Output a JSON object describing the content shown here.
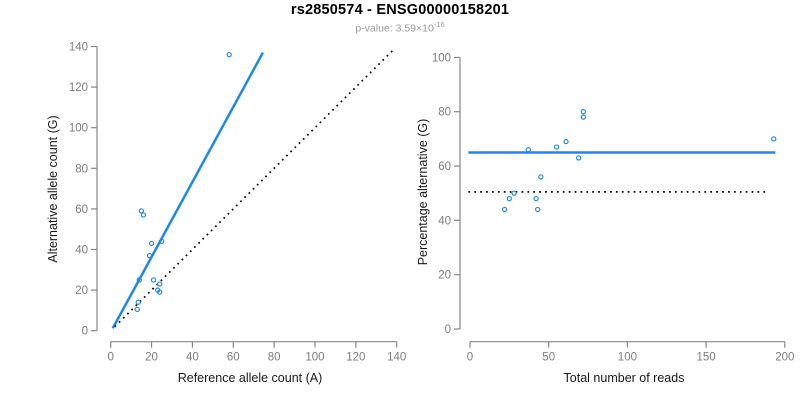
{
  "header": {
    "title": "rs2850574 - ENSG00000158201",
    "p_value_label": "p-value: 3.59×10",
    "p_value_exponent": "-16"
  },
  "colors": {
    "accent_blue": "#1E88E5",
    "reference_black": "#000000",
    "axis_gray": "#878787",
    "tick_label_gray": "#7d7d7d"
  },
  "chart_data": [
    {
      "type": "scatter",
      "panel": "allele-counts",
      "xlabel": "Reference allele count (A)",
      "ylabel": "Alternative allele count (G)",
      "xlim": [
        0,
        140
      ],
      "ylim": [
        0,
        140
      ],
      "xticks": [
        0,
        20,
        40,
        60,
        80,
        100,
        120,
        140
      ],
      "yticks": [
        0,
        20,
        40,
        60,
        80,
        100,
        120,
        140
      ],
      "grid": false,
      "points": [
        [
          58,
          136
        ],
        [
          15,
          59
        ],
        [
          16,
          57
        ],
        [
          25,
          44
        ],
        [
          20,
          43
        ],
        [
          19,
          37
        ],
        [
          14,
          25
        ],
        [
          21,
          25
        ],
        [
          24,
          23
        ],
        [
          23,
          20
        ],
        [
          24,
          19
        ],
        [
          13.5,
          14
        ],
        [
          13,
          10.5
        ]
      ],
      "lines": [
        {
          "name": "regression-line",
          "x1": 1,
          "y1": 1.2,
          "x2": 74.5,
          "y2": 137,
          "style": "solid",
          "color": "accent"
        },
        {
          "name": "identity-line",
          "x1": 2,
          "y1": 2,
          "x2": 138,
          "y2": 138,
          "style": "dotted",
          "color": "black"
        }
      ]
    },
    {
      "type": "scatter",
      "panel": "percentage-vs-coverage",
      "xlabel": "Total number of reads",
      "ylabel": "Percentage alternative (G)",
      "xlim": [
        0,
        200
      ],
      "ylim": [
        0,
        100
      ],
      "xticks": [
        0,
        50,
        100,
        150,
        200
      ],
      "yticks": [
        0,
        20,
        40,
        60,
        80,
        100
      ],
      "grid": false,
      "points": [
        [
          72,
          80
        ],
        [
          72,
          78
        ],
        [
          193,
          70
        ],
        [
          61,
          69
        ],
        [
          55,
          67
        ],
        [
          37,
          66
        ],
        [
          69,
          63
        ],
        [
          45,
          56
        ],
        [
          28,
          50
        ],
        [
          25,
          48
        ],
        [
          42,
          48
        ],
        [
          22,
          44
        ],
        [
          43,
          44
        ]
      ],
      "lines": [
        {
          "name": "mean-percentage-line",
          "x1": -1,
          "y1": 65,
          "x2": 194,
          "y2": 65,
          "style": "solid",
          "color": "accent"
        },
        {
          "name": "fifty-percent-line",
          "x1": -1,
          "y1": 50.5,
          "x2": 190,
          "y2": 50.5,
          "style": "dotted",
          "color": "black"
        }
      ]
    }
  ]
}
